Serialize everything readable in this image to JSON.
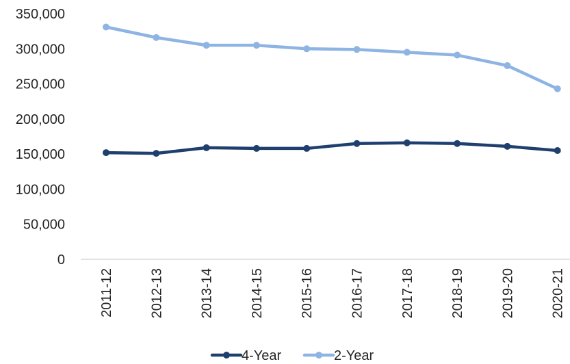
{
  "chart_data": {
    "type": "line",
    "categories": [
      "2011-12",
      "2012-13",
      "2013-14",
      "2014-15",
      "2015-16",
      "2016-17",
      "2017-18",
      "2018-19",
      "2019-20",
      "2020-21"
    ],
    "series": [
      {
        "name": "4-Year",
        "color": "#1f3f6e",
        "values": [
          152000,
          151000,
          159000,
          158000,
          158000,
          165000,
          166000,
          165000,
          161000,
          155000
        ]
      },
      {
        "name": "2-Year",
        "color": "#8eb4e3",
        "values": [
          331000,
          316000,
          305000,
          305000,
          300000,
          299000,
          295000,
          291000,
          276000,
          243000
        ]
      }
    ],
    "yticks": [
      "0",
      "50,000",
      "100,000",
      "150,000",
      "200,000",
      "250,000",
      "300,000",
      "350,000"
    ],
    "ylim": [
      0,
      350000
    ],
    "grid": false,
    "legend_position": "bottom"
  }
}
